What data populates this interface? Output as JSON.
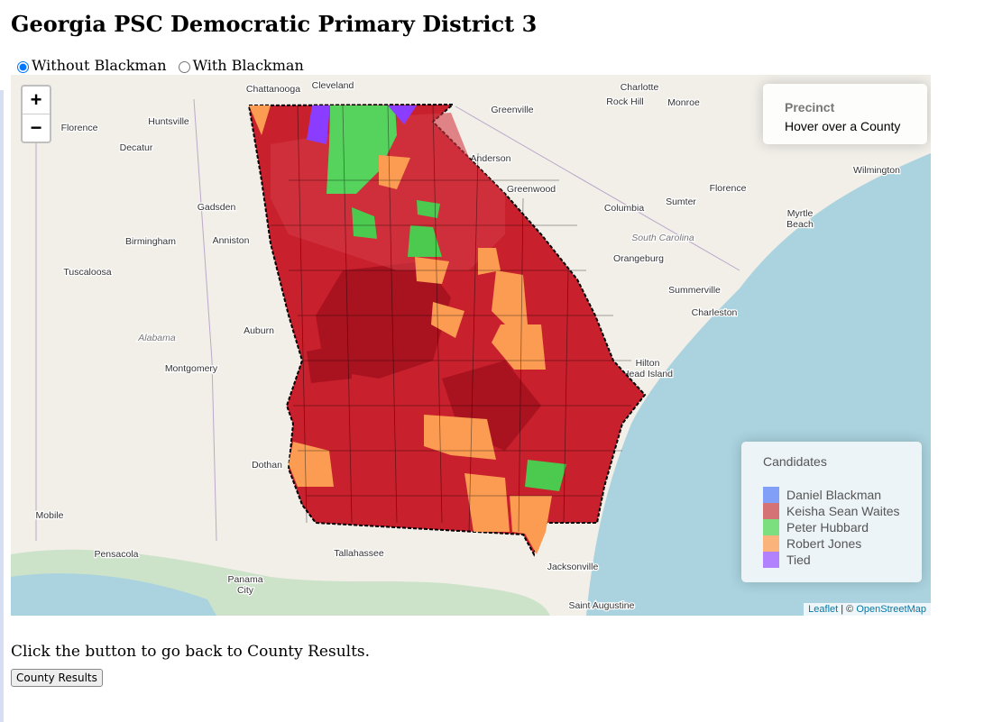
{
  "header": {
    "title": "Georgia PSC Democratic Primary District 3"
  },
  "options": [
    "Without Blackman",
    "With Blackman"
  ],
  "map": {
    "zoom_in": "+",
    "zoom_out": "−",
    "info": {
      "title": "Precinct",
      "text": "Hover over a County"
    },
    "legend": {
      "title": "Candidates",
      "items": [
        {
          "name": "Daniel Blackman",
          "color": "#6f8ff7"
        },
        {
          "name": "Keisha Sean Waites",
          "color": "#d05a5e"
        },
        {
          "name": "Peter Hubbard",
          "color": "#66d96a"
        },
        {
          "name": "Robert Jones",
          "color": "#fda766"
        },
        {
          "name": "Tied",
          "color": "#a66cff"
        }
      ]
    },
    "attribution": {
      "leaflet": "Leaflet",
      "separator": "| ©",
      "osm": "OpenStreetMap"
    },
    "places": [
      "Chattanooga",
      "Cleveland",
      "Charlotte",
      "Rock Hill",
      "Monroe",
      "Greenville",
      "Huntsville",
      "Florence",
      "Decatur",
      "Anderson",
      "Greenwood",
      "Gadsden",
      "Columbia",
      "Sumter",
      "Florence",
      "Wilmington",
      "Myrtle",
      "Beach",
      "Birmingham",
      "Anniston",
      "South Carolina",
      "Orangeburg",
      "Tuscaloosa",
      "Summerville",
      "Charleston",
      "Alabama",
      "Auburn",
      "Montgomery",
      "Hilton",
      "Head Island",
      "Dothan",
      "Mobile",
      "Pensacola",
      "Tallahassee",
      "Jacksonville",
      "Panama",
      "City",
      "Saint Augustine"
    ]
  },
  "footer": {
    "text": "Click the button to go back to County Results.",
    "button": "County Results"
  }
}
